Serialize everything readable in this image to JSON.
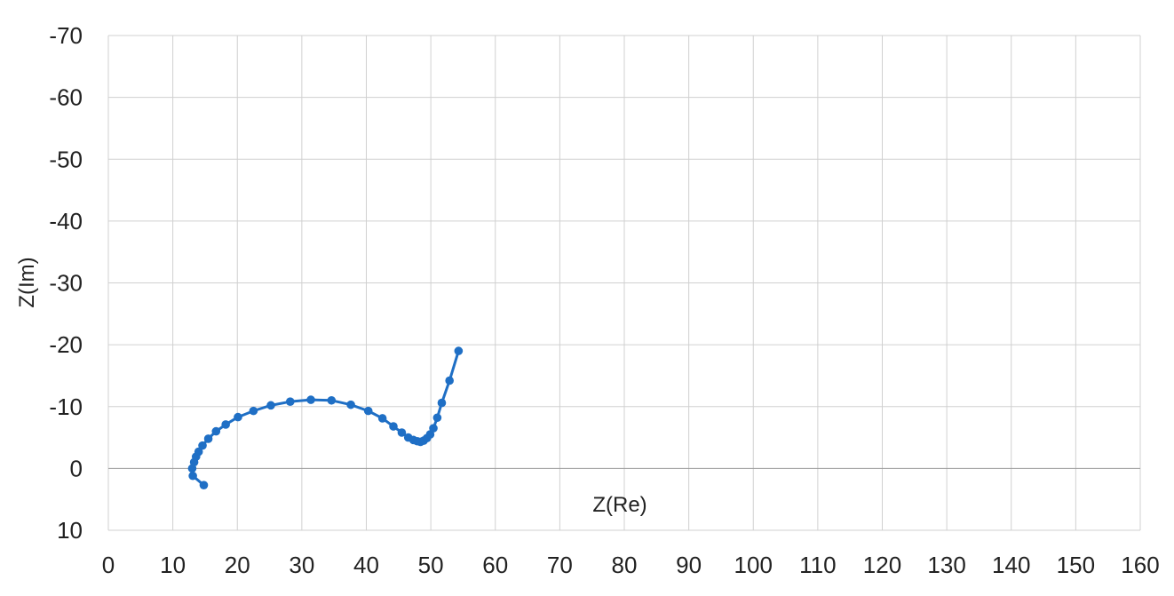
{
  "chart_data": {
    "type": "scatter",
    "title": "",
    "xlabel": "Z(Re)",
    "ylabel": "Z(Im)",
    "xlim": [
      0,
      160
    ],
    "ylim": [
      10,
      -70
    ],
    "y_inverted": true,
    "xticks": [
      0,
      10,
      20,
      30,
      40,
      50,
      60,
      70,
      80,
      90,
      100,
      110,
      120,
      130,
      140,
      150,
      160
    ],
    "yticks": [
      -70,
      -60,
      -50,
      -40,
      -30,
      -20,
      -10,
      0,
      10
    ],
    "grid": true,
    "legend": "none",
    "series": [
      {
        "color": "#1f6fc5",
        "points": [
          [
            14.8,
            2.7
          ],
          [
            13.1,
            1.2
          ],
          [
            13.0,
            0.0
          ],
          [
            13.3,
            -1.0
          ],
          [
            13.6,
            -1.9
          ],
          [
            14.0,
            -2.7
          ],
          [
            14.6,
            -3.7
          ],
          [
            15.5,
            -4.8
          ],
          [
            16.7,
            -6.0
          ],
          [
            18.2,
            -7.1
          ],
          [
            20.1,
            -8.3
          ],
          [
            22.5,
            -9.3
          ],
          [
            25.2,
            -10.2
          ],
          [
            28.2,
            -10.8
          ],
          [
            31.4,
            -11.1
          ],
          [
            34.6,
            -11.0
          ],
          [
            37.6,
            -10.3
          ],
          [
            40.3,
            -9.3
          ],
          [
            42.5,
            -8.1
          ],
          [
            44.2,
            -6.8
          ],
          [
            45.5,
            -5.8
          ],
          [
            46.5,
            -5.0
          ],
          [
            47.3,
            -4.6
          ],
          [
            47.9,
            -4.4
          ],
          [
            48.4,
            -4.3
          ],
          [
            48.9,
            -4.5
          ],
          [
            49.4,
            -4.9
          ],
          [
            49.9,
            -5.5
          ],
          [
            50.4,
            -6.5
          ],
          [
            51.0,
            -8.2
          ],
          [
            51.7,
            -10.6
          ],
          [
            52.9,
            -14.2
          ],
          [
            54.3,
            -19.0
          ]
        ]
      }
    ]
  }
}
